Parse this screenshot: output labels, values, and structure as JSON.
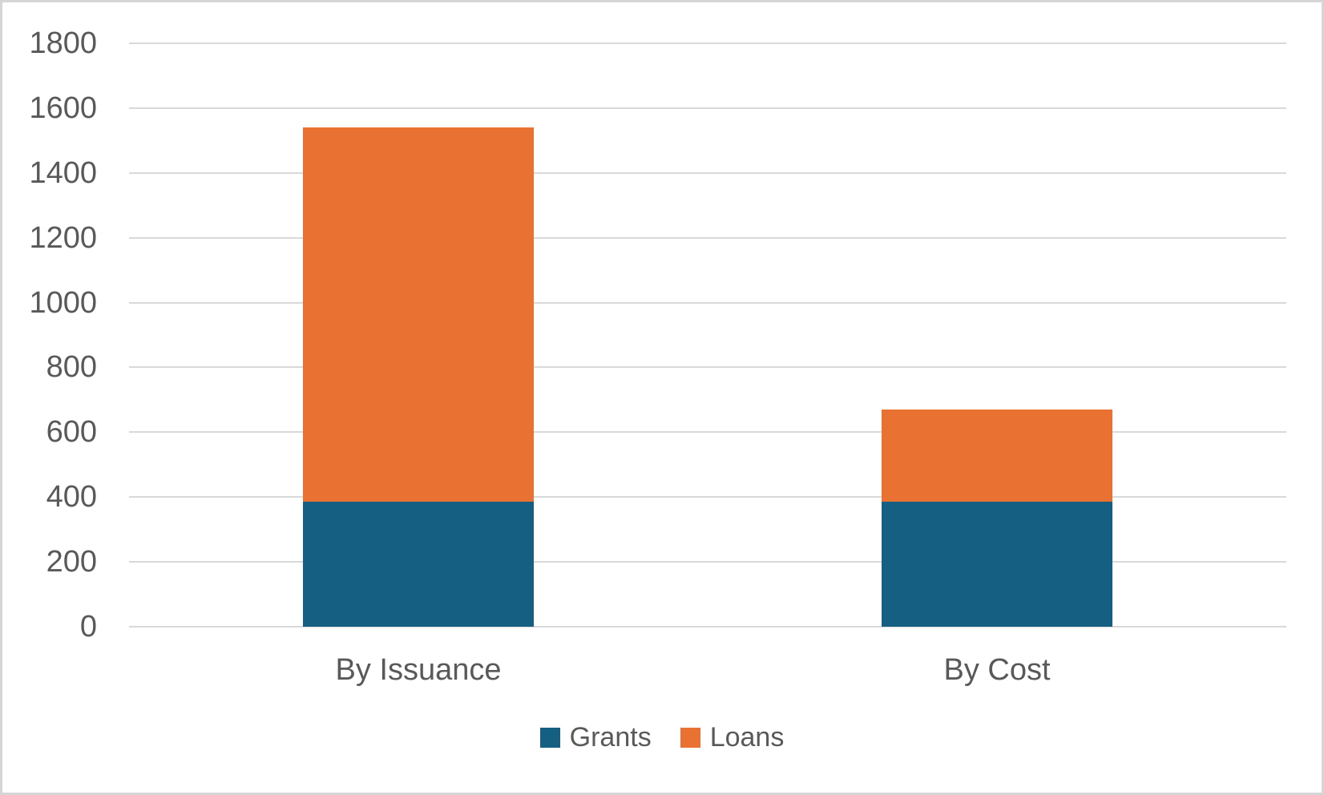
{
  "chart_data": {
    "type": "bar",
    "stacked": true,
    "title": "",
    "categories": [
      "By Issuance",
      "By Cost"
    ],
    "series": [
      {
        "name": "Grants",
        "color": "#156082",
        "values": [
          385,
          385
        ]
      },
      {
        "name": "Loans",
        "color": "#E97132",
        "values": [
          1155,
          285
        ]
      }
    ],
    "stack_totals": [
      1540,
      670
    ],
    "xlabel": "",
    "ylabel": "",
    "ylim": [
      0,
      1800
    ],
    "ytick_step": 200,
    "yticks": [
      0,
      200,
      400,
      600,
      800,
      1000,
      1200,
      1400,
      1600,
      1800
    ],
    "grid": true,
    "legend_position": "bottom-center"
  },
  "style": {
    "background": "#FFFFFF",
    "border_color": "#D5D5D5",
    "grid_color": "#D9D9D9",
    "text_color": "#595959"
  }
}
